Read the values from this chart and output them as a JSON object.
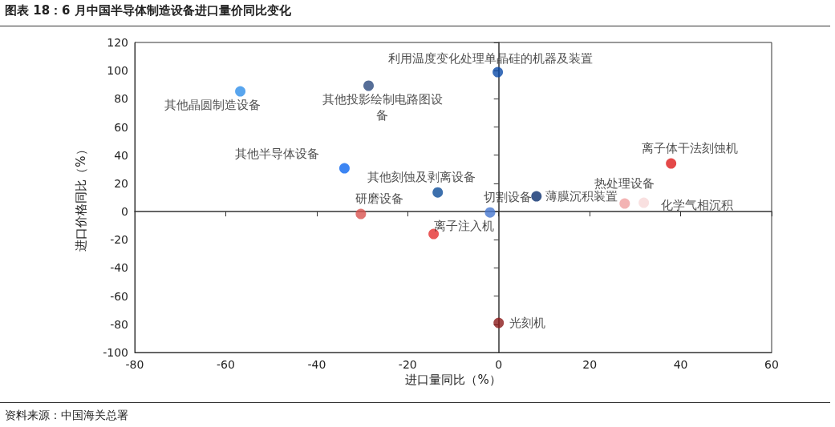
{
  "chart_data": {
    "type": "scatter",
    "title": "图表 18：6 月中国半导体制造设备进口量价同比变化",
    "xlabel": "进口量同比（%）",
    "ylabel": "进口价格同比（%）",
    "x": [
      -56.8,
      -28.6,
      -0.2,
      -33.9,
      -13.4,
      -30.3,
      -1.9,
      -14.3,
      0,
      8.3,
      27.7,
      31.9,
      37.9
    ],
    "values": [
      85.3,
      89.3,
      98.9,
      30.7,
      13.6,
      -1.7,
      -0.6,
      -15.9,
      -79,
      10.8,
      5.7,
      6.3,
      34.1
    ],
    "colors": [
      "#2e8fea",
      "#2c4a7e",
      "#0a4aa8",
      "#0b66f0",
      "#0d4c99",
      "#d9534f",
      "#4677cf",
      "#e53030",
      "#8b1a1a",
      "#0a2e6e",
      "#f0a0a0",
      "#f8d8d8",
      "#dd1c1c"
    ],
    "xlim": [
      -80,
      60
    ],
    "xticks": [
      -80,
      -60,
      -40,
      -20,
      0,
      20,
      40,
      60
    ],
    "ylim": [
      -100,
      120
    ],
    "yticks": [
      -100,
      -80,
      -60,
      -40,
      -20,
      0,
      20,
      40,
      60,
      80,
      100,
      120
    ],
    "marker": "circle",
    "annotations": [
      {
        "text": "其他晶圆制造设备",
        "x": -56.8,
        "y": 85.3
      },
      {
        "text": "其他投影绘制电路图设备",
        "x": -28.6,
        "y": 89.3
      },
      {
        "text": "利用温度变化处理单晶硅的机器及装置",
        "x": -0.2,
        "y": 98.9
      },
      {
        "text": "其他半导体设备",
        "x": -33.9,
        "y": 30.7
      },
      {
        "text": "其他刻蚀及剥离设备",
        "x": -13.4,
        "y": 13.6
      },
      {
        "text": "研磨设备",
        "x": -30.3,
        "y": -1.7
      },
      {
        "text": "切割设备",
        "x": -1.9,
        "y": -0.6
      },
      {
        "text": "离子注入机",
        "x": -14.3,
        "y": -15.9
      },
      {
        "text": "光刻机",
        "x": 0,
        "y": -79
      },
      {
        "text": "薄膜沉积装置",
        "x": 8.3,
        "y": 10.8
      },
      {
        "text": "热处理设备",
        "x": 27.7,
        "y": 5.7
      },
      {
        "text": "化学气相沉积",
        "x": 31.9,
        "y": 6.3
      },
      {
        "text": "离子体干法刻蚀机",
        "x": 37.9,
        "y": 34.1
      },
      "资料来源：中国海关总署"
    ]
  }
}
